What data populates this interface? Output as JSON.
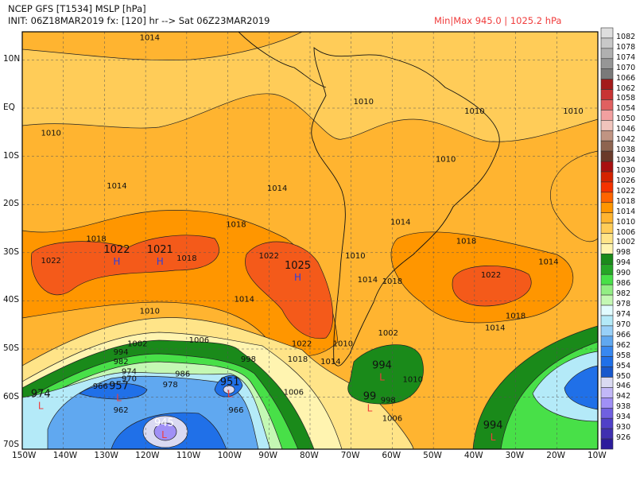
{
  "header": {
    "title": "NCEP GFS [T1534] MSLP [hPa]",
    "init_line": "INIT: 06Z18MAR2019 fx: [120] hr --> Sat 06Z23MAR2019",
    "minmax": "Min|Max 945.0 | 1025.2 hPa"
  },
  "axes": {
    "lat_labels": [
      "10N",
      "EQ",
      "10S",
      "20S",
      "30S",
      "40S",
      "50S",
      "60S",
      "70S"
    ],
    "lon_labels": [
      "150W",
      "140W",
      "130W",
      "120W",
      "110W",
      "100W",
      "90W",
      "80W",
      "70W",
      "60W",
      "50W",
      "40W",
      "30W",
      "20W",
      "10W"
    ]
  },
  "colorbar": {
    "labels": [
      "1082",
      "1078",
      "1074",
      "1070",
      "1066",
      "1062",
      "1058",
      "1054",
      "1050",
      "1046",
      "1042",
      "1038",
      "1034",
      "1030",
      "1026",
      "1022",
      "1018",
      "1014",
      "1010",
      "1006",
      "1002",
      "998",
      "994",
      "990",
      "986",
      "982",
      "978",
      "974",
      "970",
      "966",
      "962",
      "958",
      "954",
      "950",
      "946",
      "942",
      "938",
      "934",
      "930",
      "926"
    ],
    "colors": [
      "#dedede",
      "#c8c8c8",
      "#b0b0b0",
      "#969696",
      "#7a7a7a",
      "#a31a1a",
      "#c83434",
      "#e06060",
      "#f2a0a0",
      "#f0c4bc",
      "#c09482",
      "#8e6450",
      "#6a3a2a",
      "#a81010",
      "#d42200",
      "#f43200",
      "#ff6400",
      "#ff9600",
      "#ffb430",
      "#ffcc58",
      "#ffe488",
      "#fff4b0",
      "#1a8a1a",
      "#26a626",
      "#48e048",
      "#92ee84",
      "#c4f8b4",
      "#e2fcff",
      "#b4eaf8",
      "#98d0f8",
      "#60a8f0",
      "#3888f0",
      "#2070e8",
      "#1858cc",
      "#dadaf2",
      "#c2b8f8",
      "#a090f6",
      "#7060e0",
      "#5040c8",
      "#4030b0",
      "#2c1c9c"
    ]
  },
  "contour_labels": [
    {
      "text": "1014",
      "lon": 119,
      "lat": 14.8
    },
    {
      "text": "1014",
      "lon": 84,
      "lat": 17.5
    },
    {
      "text": "1010",
      "lon": 67,
      "lat": 1.5
    },
    {
      "text": "1010",
      "lon": 40,
      "lat": -0.5
    },
    {
      "text": "1010",
      "lon": 16,
      "lat": -0.5
    },
    {
      "text": "1010",
      "lon": 143,
      "lat": -5
    },
    {
      "text": "1010",
      "lon": 47,
      "lat": -10.5
    },
    {
      "text": "1014",
      "lon": 127,
      "lat": -16
    },
    {
      "text": "1014",
      "lon": 88,
      "lat": -16.5
    },
    {
      "text": "1018",
      "lon": 132,
      "lat": -27
    },
    {
      "text": "1018",
      "lon": 98,
      "lat": -24
    },
    {
      "text": "1014",
      "lon": 58,
      "lat": -23.5
    },
    {
      "text": "1018",
      "lon": 42,
      "lat": -27.5
    },
    {
      "text": "1022",
      "lon": 143,
      "lat": -31.5
    },
    {
      "text": "1018",
      "lon": 110,
      "lat": -31
    },
    {
      "text": "1022",
      "lon": 90,
      "lat": -30.5
    },
    {
      "text": "1010",
      "lon": 69,
      "lat": -30.5
    },
    {
      "text": "1014",
      "lon": 66,
      "lat": -35.5
    },
    {
      "text": "1018",
      "lon": 60,
      "lat": -35.8
    },
    {
      "text": "1022",
      "lon": 36,
      "lat": -34.5
    },
    {
      "text": "1014",
      "lon": 22,
      "lat": -31.8
    },
    {
      "text": "1014",
      "lon": 96,
      "lat": -39.5
    },
    {
      "text": "1010",
      "lon": 119,
      "lat": -42
    },
    {
      "text": "1018",
      "lon": 30,
      "lat": -43
    },
    {
      "text": "1014",
      "lon": 35,
      "lat": -45.5
    },
    {
      "text": "1006",
      "lon": 107,
      "lat": -48
    },
    {
      "text": "1002",
      "lon": 122,
      "lat": -48.8
    },
    {
      "text": "1022",
      "lon": 82,
      "lat": -48.8
    },
    {
      "text": "1010",
      "lon": 72,
      "lat": -48.8
    },
    {
      "text": "1002",
      "lon": 61,
      "lat": -46.5
    },
    {
      "text": "998",
      "lon": 95,
      "lat": -52
    },
    {
      "text": "1018",
      "lon": 83,
      "lat": -52
    },
    {
      "text": "1014",
      "lon": 75,
      "lat": -52.5
    },
    {
      "text": "994",
      "lon": 126,
      "lat": -50.5
    },
    {
      "text": "982",
      "lon": 126,
      "lat": -52.5
    },
    {
      "text": "974",
      "lon": 124,
      "lat": -54.5
    },
    {
      "text": "970",
      "lon": 124,
      "lat": -56
    },
    {
      "text": "986",
      "lon": 111,
      "lat": -55
    },
    {
      "text": "978",
      "lon": 114,
      "lat": -57.3
    },
    {
      "text": "966",
      "lon": 131,
      "lat": -57.6
    },
    {
      "text": "962",
      "lon": 126,
      "lat": -62.5
    },
    {
      "text": "966",
      "lon": 98,
      "lat": -62.5
    },
    {
      "text": "1010",
      "lon": 55,
      "lat": -56.2
    },
    {
      "text": "1006",
      "lon": 84,
      "lat": -58.8
    },
    {
      "text": "998",
      "lon": 61,
      "lat": -60.5
    },
    {
      "text": "1006",
      "lon": 60,
      "lat": -64.3
    }
  ],
  "pressure_centers": [
    {
      "value": "1022",
      "type": "H",
      "lon": 127,
      "lat": -31
    },
    {
      "value": "1021",
      "type": "H",
      "lon": 116.5,
      "lat": -31
    },
    {
      "value": "1025",
      "type": "H",
      "lon": 83,
      "lat": -34.3
    },
    {
      "value": "957",
      "type": "L",
      "lon": 126.5,
      "lat": -59.3
    },
    {
      "value": "951",
      "type": "L",
      "lon": 99.5,
      "lat": -58.5
    },
    {
      "value": "945",
      "type": "L",
      "lon": 115.5,
      "lat": -67
    },
    {
      "value": "974",
      "type": "L",
      "lon": 145.5,
      "lat": -61
    },
    {
      "value": "994",
      "type": "L",
      "lon": 62.5,
      "lat": -55
    },
    {
      "value": "99",
      "type": "L",
      "lon": 65.5,
      "lat": -61.5
    },
    {
      "value": "994",
      "type": "L",
      "lon": 35.5,
      "lat": -67.5
    }
  ],
  "colors": {
    "high_marker": "#2a40e0",
    "low_marker": "#f03c3c",
    "minmax_text": "#f03c3c"
  }
}
